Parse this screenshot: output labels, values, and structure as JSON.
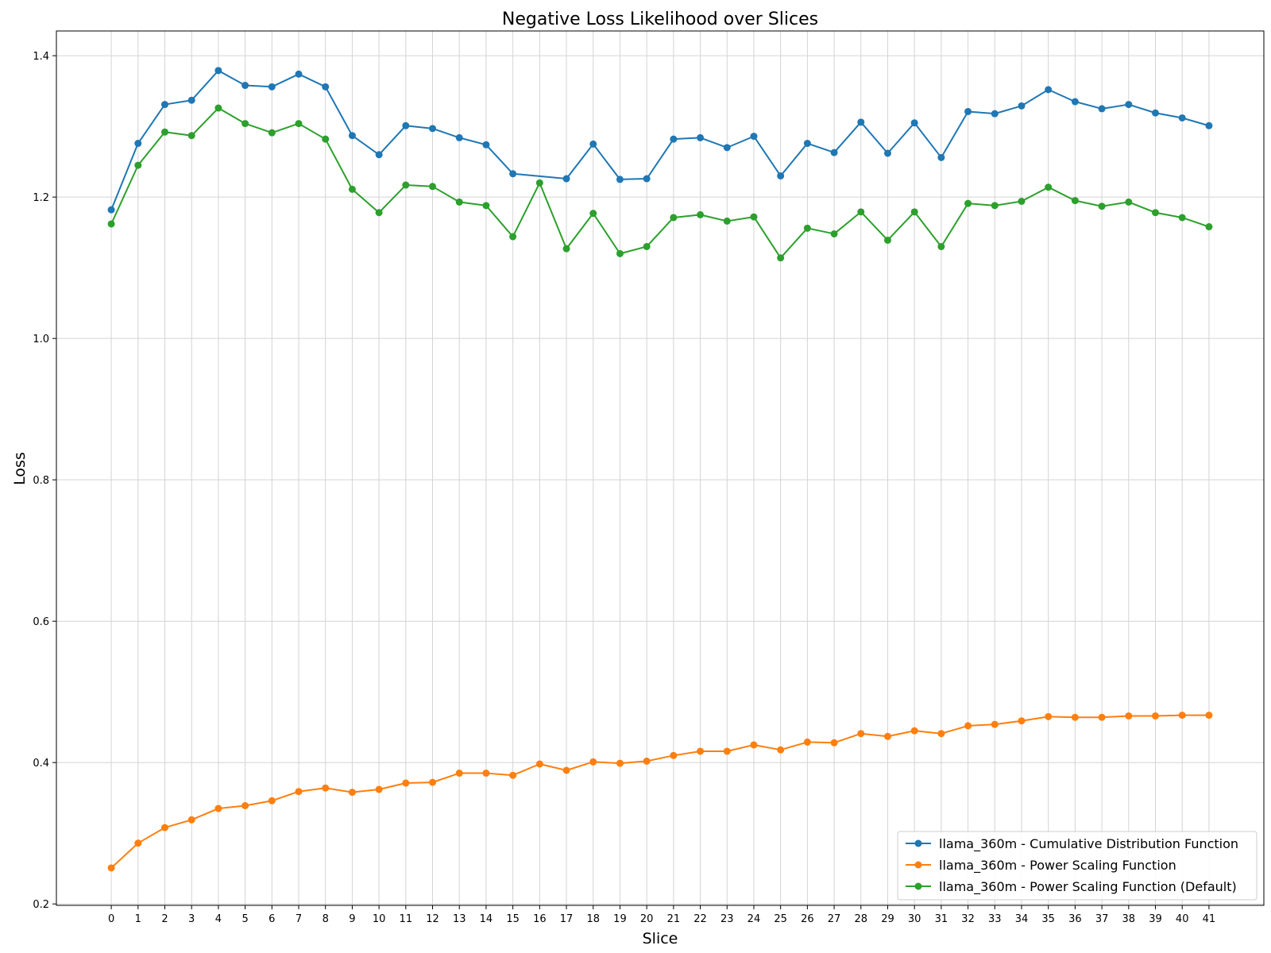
{
  "chart_data": {
    "type": "line",
    "title": "Negative Loss Likelihood over Slices",
    "xlabel": "Slice",
    "ylabel": "Loss",
    "x": [
      0,
      1,
      2,
      3,
      4,
      5,
      6,
      7,
      8,
      9,
      10,
      11,
      12,
      13,
      14,
      15,
      16,
      17,
      18,
      19,
      20,
      21,
      22,
      23,
      24,
      25,
      26,
      27,
      28,
      29,
      30,
      31,
      32,
      33,
      34,
      35,
      36,
      37,
      38,
      39,
      40,
      41
    ],
    "xlim": [
      -2.05,
      43.05
    ],
    "ylim": [
      0.198,
      1.435
    ],
    "yticks": [
      0.2,
      0.4,
      0.6,
      0.8,
      1.0,
      1.2,
      1.4
    ],
    "ytick_labels": [
      "0.2",
      "0.4",
      "0.6",
      "0.8",
      "1.0",
      "1.2",
      "1.4"
    ],
    "grid": true,
    "legend_position": "lower-right",
    "series": [
      {
        "name": "llama_360m - Cumulative Distribution Function",
        "color": "#1f77b4",
        "x": [
          0,
          1,
          2,
          3,
          4,
          5,
          6,
          7,
          8,
          9,
          10,
          11,
          12,
          13,
          14,
          15,
          17,
          18,
          19,
          20,
          21,
          22,
          23,
          24,
          25,
          26,
          27,
          28,
          29,
          30,
          31,
          32,
          33,
          34,
          35,
          36,
          37,
          38,
          39,
          40,
          41
        ],
        "values": [
          1.182,
          1.276,
          1.331,
          1.337,
          1.379,
          1.358,
          1.356,
          1.374,
          1.356,
          1.287,
          1.26,
          1.301,
          1.297,
          1.284,
          1.274,
          1.233,
          1.226,
          1.275,
          1.225,
          1.226,
          1.282,
          1.284,
          1.27,
          1.286,
          1.23,
          1.276,
          1.263,
          1.306,
          1.262,
          1.305,
          1.256,
          1.321,
          1.318,
          1.329,
          1.352,
          1.335,
          1.325,
          1.331,
          1.319,
          1.312,
          1.301
        ]
      },
      {
        "name": "llama_360m - Power Scaling Function",
        "color": "#ff7f0e",
        "x": [
          0,
          1,
          2,
          3,
          4,
          5,
          6,
          7,
          8,
          9,
          10,
          11,
          12,
          13,
          14,
          15,
          16,
          17,
          18,
          19,
          20,
          21,
          22,
          23,
          24,
          25,
          26,
          27,
          28,
          29,
          30,
          31,
          32,
          33,
          34,
          35,
          36,
          37,
          38,
          39,
          40,
          41
        ],
        "values": [
          0.251,
          0.286,
          0.308,
          0.319,
          0.335,
          0.339,
          0.346,
          0.359,
          0.364,
          0.358,
          0.362,
          0.371,
          0.372,
          0.385,
          0.385,
          0.382,
          0.398,
          0.389,
          0.401,
          0.399,
          0.402,
          0.41,
          0.416,
          0.416,
          0.425,
          0.418,
          0.429,
          0.428,
          0.441,
          0.437,
          0.445,
          0.441,
          0.452,
          0.454,
          0.459,
          0.465,
          0.464,
          0.464,
          0.466,
          0.466,
          0.467,
          0.467
        ]
      },
      {
        "name": "llama_360m - Power Scaling Function (Default)",
        "color": "#2ca02c",
        "x": [
          0,
          1,
          2,
          3,
          4,
          5,
          6,
          7,
          8,
          9,
          10,
          11,
          12,
          13,
          14,
          15,
          16,
          17,
          18,
          19,
          20,
          21,
          22,
          23,
          24,
          25,
          26,
          27,
          28,
          29,
          30,
          31,
          32,
          33,
          34,
          35,
          36,
          37,
          38,
          39,
          40,
          41
        ],
        "values": [
          1.162,
          1.245,
          1.292,
          1.287,
          1.326,
          1.304,
          1.291,
          1.304,
          1.282,
          1.211,
          1.178,
          1.217,
          1.215,
          1.193,
          1.188,
          1.144,
          1.22,
          1.127,
          1.177,
          1.12,
          1.13,
          1.171,
          1.175,
          1.166,
          1.172,
          1.114,
          1.156,
          1.148,
          1.179,
          1.139,
          1.179,
          1.13,
          1.191,
          1.188,
          1.194,
          1.214,
          1.195,
          1.187,
          1.193,
          1.178,
          1.171,
          1.158
        ]
      }
    ]
  }
}
